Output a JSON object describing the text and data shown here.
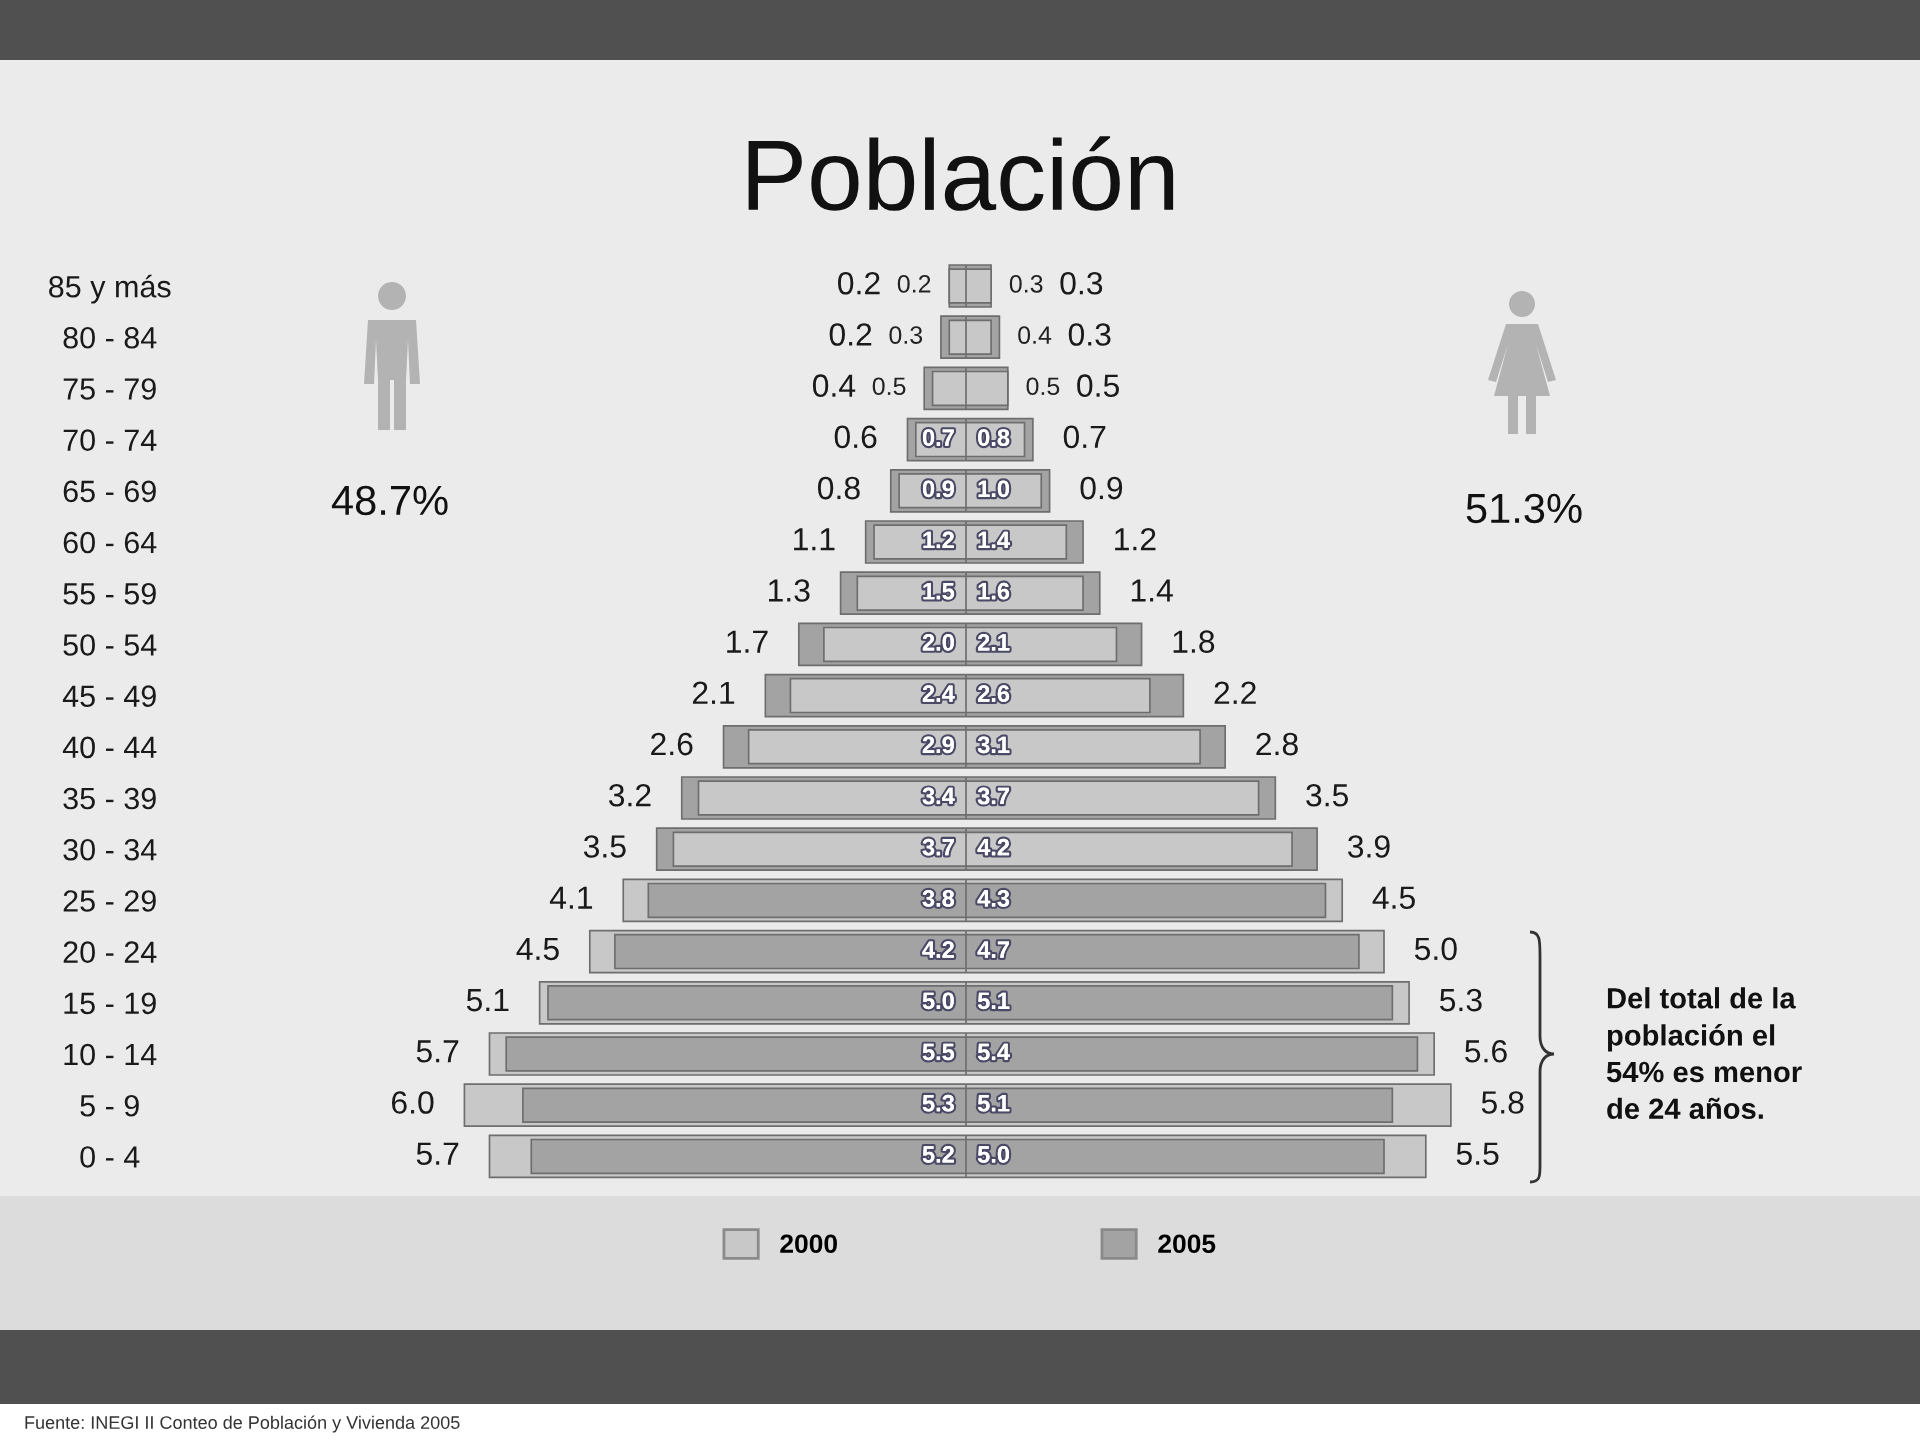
{
  "chart_data": [
    {
      "type": "bar",
      "orientation": "horizontal",
      "title": "Población",
      "categories": [
        "85 y más",
        "80 - 84",
        "75 - 79",
        "70 - 74",
        "65 - 69",
        "60 - 64",
        "55 - 59",
        "50 - 54",
        "45 - 49",
        "40 - 44",
        "35 - 39",
        "30 - 34",
        "25 - 29",
        "20 - 24",
        "15 - 19",
        "10 - 14",
        "5 - 9",
        "0 - 4"
      ],
      "series": [
        {
          "name": "2000",
          "color": "#c8c8c8",
          "values": [
            0.2,
            0.2,
            0.4,
            0.6,
            0.8,
            1.1,
            1.3,
            1.7,
            2.1,
            2.6,
            3.2,
            3.5,
            4.1,
            4.5,
            5.1,
            5.7,
            6.0,
            5.7
          ],
          "value_labels": [
            "0.2",
            "0.2",
            "0.4",
            "0.6",
            "0.8",
            "1.1",
            "1.3",
            "1.7",
            "2.1",
            "2.6",
            "3.2",
            "3.5",
            "4.1",
            "4.5",
            "5.1",
            "5.7",
            "6.0",
            "5.7"
          ]
        },
        {
          "name": "2005",
          "color": "#a3a3a3",
          "values": [
            0.2,
            0.3,
            0.5,
            0.7,
            0.9,
            1.2,
            1.5,
            2.0,
            2.4,
            2.9,
            3.4,
            3.7,
            3.8,
            4.2,
            5.0,
            5.5,
            5.3,
            5.2
          ],
          "value_labels": [
            "0.2",
            "0.3",
            "0.5",
            "0.7",
            "0.9",
            "1.2",
            "1.5",
            "2.0",
            "2.4",
            "2.9",
            "3.4",
            "3.7",
            "3.8",
            "4.2",
            "5.0",
            "5.5",
            "5.3",
            "5.2"
          ]
        }
      ],
      "tick_labels": "y",
      "legend": "bottom",
      "annotations": [
        "48.7%",
        "Fuente: INEGI II Conteo de Población y Vivienda 2005"
      ]
    },
    {
      "type": "bar",
      "orientation": "horizontal",
      "categories": [
        null,
        null,
        null,
        null,
        null,
        null,
        null,
        null,
        null,
        null,
        null,
        null,
        null,
        null,
        null,
        null,
        null,
        null
      ],
      "series": [
        {
          "color": "#c8c8c8",
          "values": [
            0.3,
            0.3,
            0.5,
            0.7,
            0.9,
            1.2,
            1.4,
            1.8,
            2.2,
            2.8,
            3.5,
            3.9,
            4.5,
            5.0,
            5.3,
            5.6,
            5.8,
            5.5
          ],
          "value_labels": [
            "0.3",
            "0.3",
            "0.5",
            "0.7",
            "0.9",
            "1.2",
            "1.4",
            "1.8",
            "2.2",
            "2.8",
            "3.5",
            "3.9",
            "4.5",
            "5.0",
            "5.3",
            "5.6",
            "5.8",
            "5.5"
          ]
        },
        {
          "color": "#a3a3a3",
          "values": [
            0.3,
            0.4,
            0.5,
            0.8,
            1.0,
            1.4,
            1.6,
            2.1,
            2.6,
            3.1,
            3.7,
            4.2,
            4.3,
            4.7,
            5.1,
            5.4,
            5.1,
            5.0
          ],
          "value_labels": [
            "0.3",
            "0.4",
            "0.5",
            "0.8",
            "1.0",
            "1.4",
            "1.6",
            "2.1",
            "2.6",
            "3.1",
            "3.7",
            "4.2",
            "4.3",
            "4.7",
            "5.1",
            "5.4",
            "5.1",
            "5.0"
          ]
        }
      ],
      "tick_labels": false,
      "annotations": [
        "51.3%",
        "Del total de la\npoblación el\n54% es menor\nde 24 años."
      ]
    }
  ]
}
